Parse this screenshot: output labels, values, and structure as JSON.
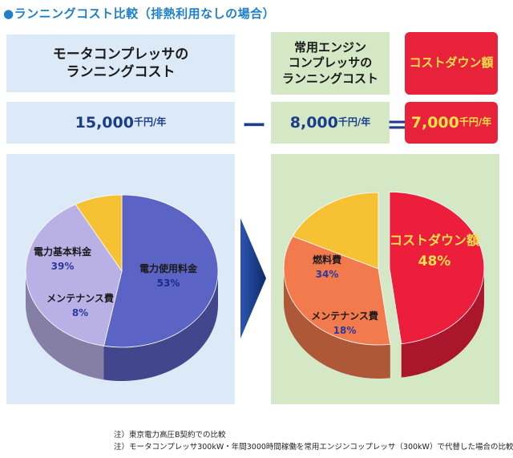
{
  "title": "●ランニングコスト比較（排熱利用なしの場合）",
  "headers": {
    "motor": [
      "モータコンプレッサの",
      "ランニングコスト"
    ],
    "engine": [
      "常用エンジン",
      "コンプレッサの",
      "ランニングコスト"
    ],
    "saving": "コストダウン額"
  },
  "values": {
    "motor": {
      "number": "15,000",
      "unit": "千円/年"
    },
    "engine": {
      "number": "8,000",
      "unit": "千円/年"
    },
    "saving": {
      "number": "7,000",
      "unit": "千円/年"
    },
    "minus": "ー",
    "equals": "＝"
  },
  "notes": [
    "注）東京電力高圧B契約での比較",
    "注）モータコンプレッサ300kW・年間3000時間稼働を常用エンジンコップレッサ（300kW）で代替した場合の比較"
  ],
  "colors": {
    "title": "#1f7fc8",
    "blue_panel": "#dce9f6",
    "green_panel": "#d4e8c6",
    "red": "#e8223a",
    "yellow": "#ffe14d",
    "arrow": "#1a3d8c"
  },
  "chart_data": [
    {
      "type": "pie",
      "title": "",
      "slices": [
        {
          "label": "電力使用料金",
          "value": 53,
          "display": "53%",
          "color": "#5b63c4"
        },
        {
          "label": "電力基本料金",
          "value": 39,
          "display": "39%",
          "color": "#b9b0e6"
        },
        {
          "label": "メンテナンス費",
          "value": 8,
          "display": "8%",
          "color": "#f6c233"
        }
      ]
    },
    {
      "type": "pie",
      "title": "",
      "slices": [
        {
          "label": "コストダウン額",
          "value": 48,
          "display": "48%",
          "color": "#ec1e3c",
          "exploded": true
        },
        {
          "label": "燃料費",
          "value": 34,
          "display": "34%",
          "color": "#f27a4c"
        },
        {
          "label": "メンテナンス費",
          "value": 18,
          "display": "18%",
          "color": "#f6c233"
        }
      ]
    }
  ]
}
